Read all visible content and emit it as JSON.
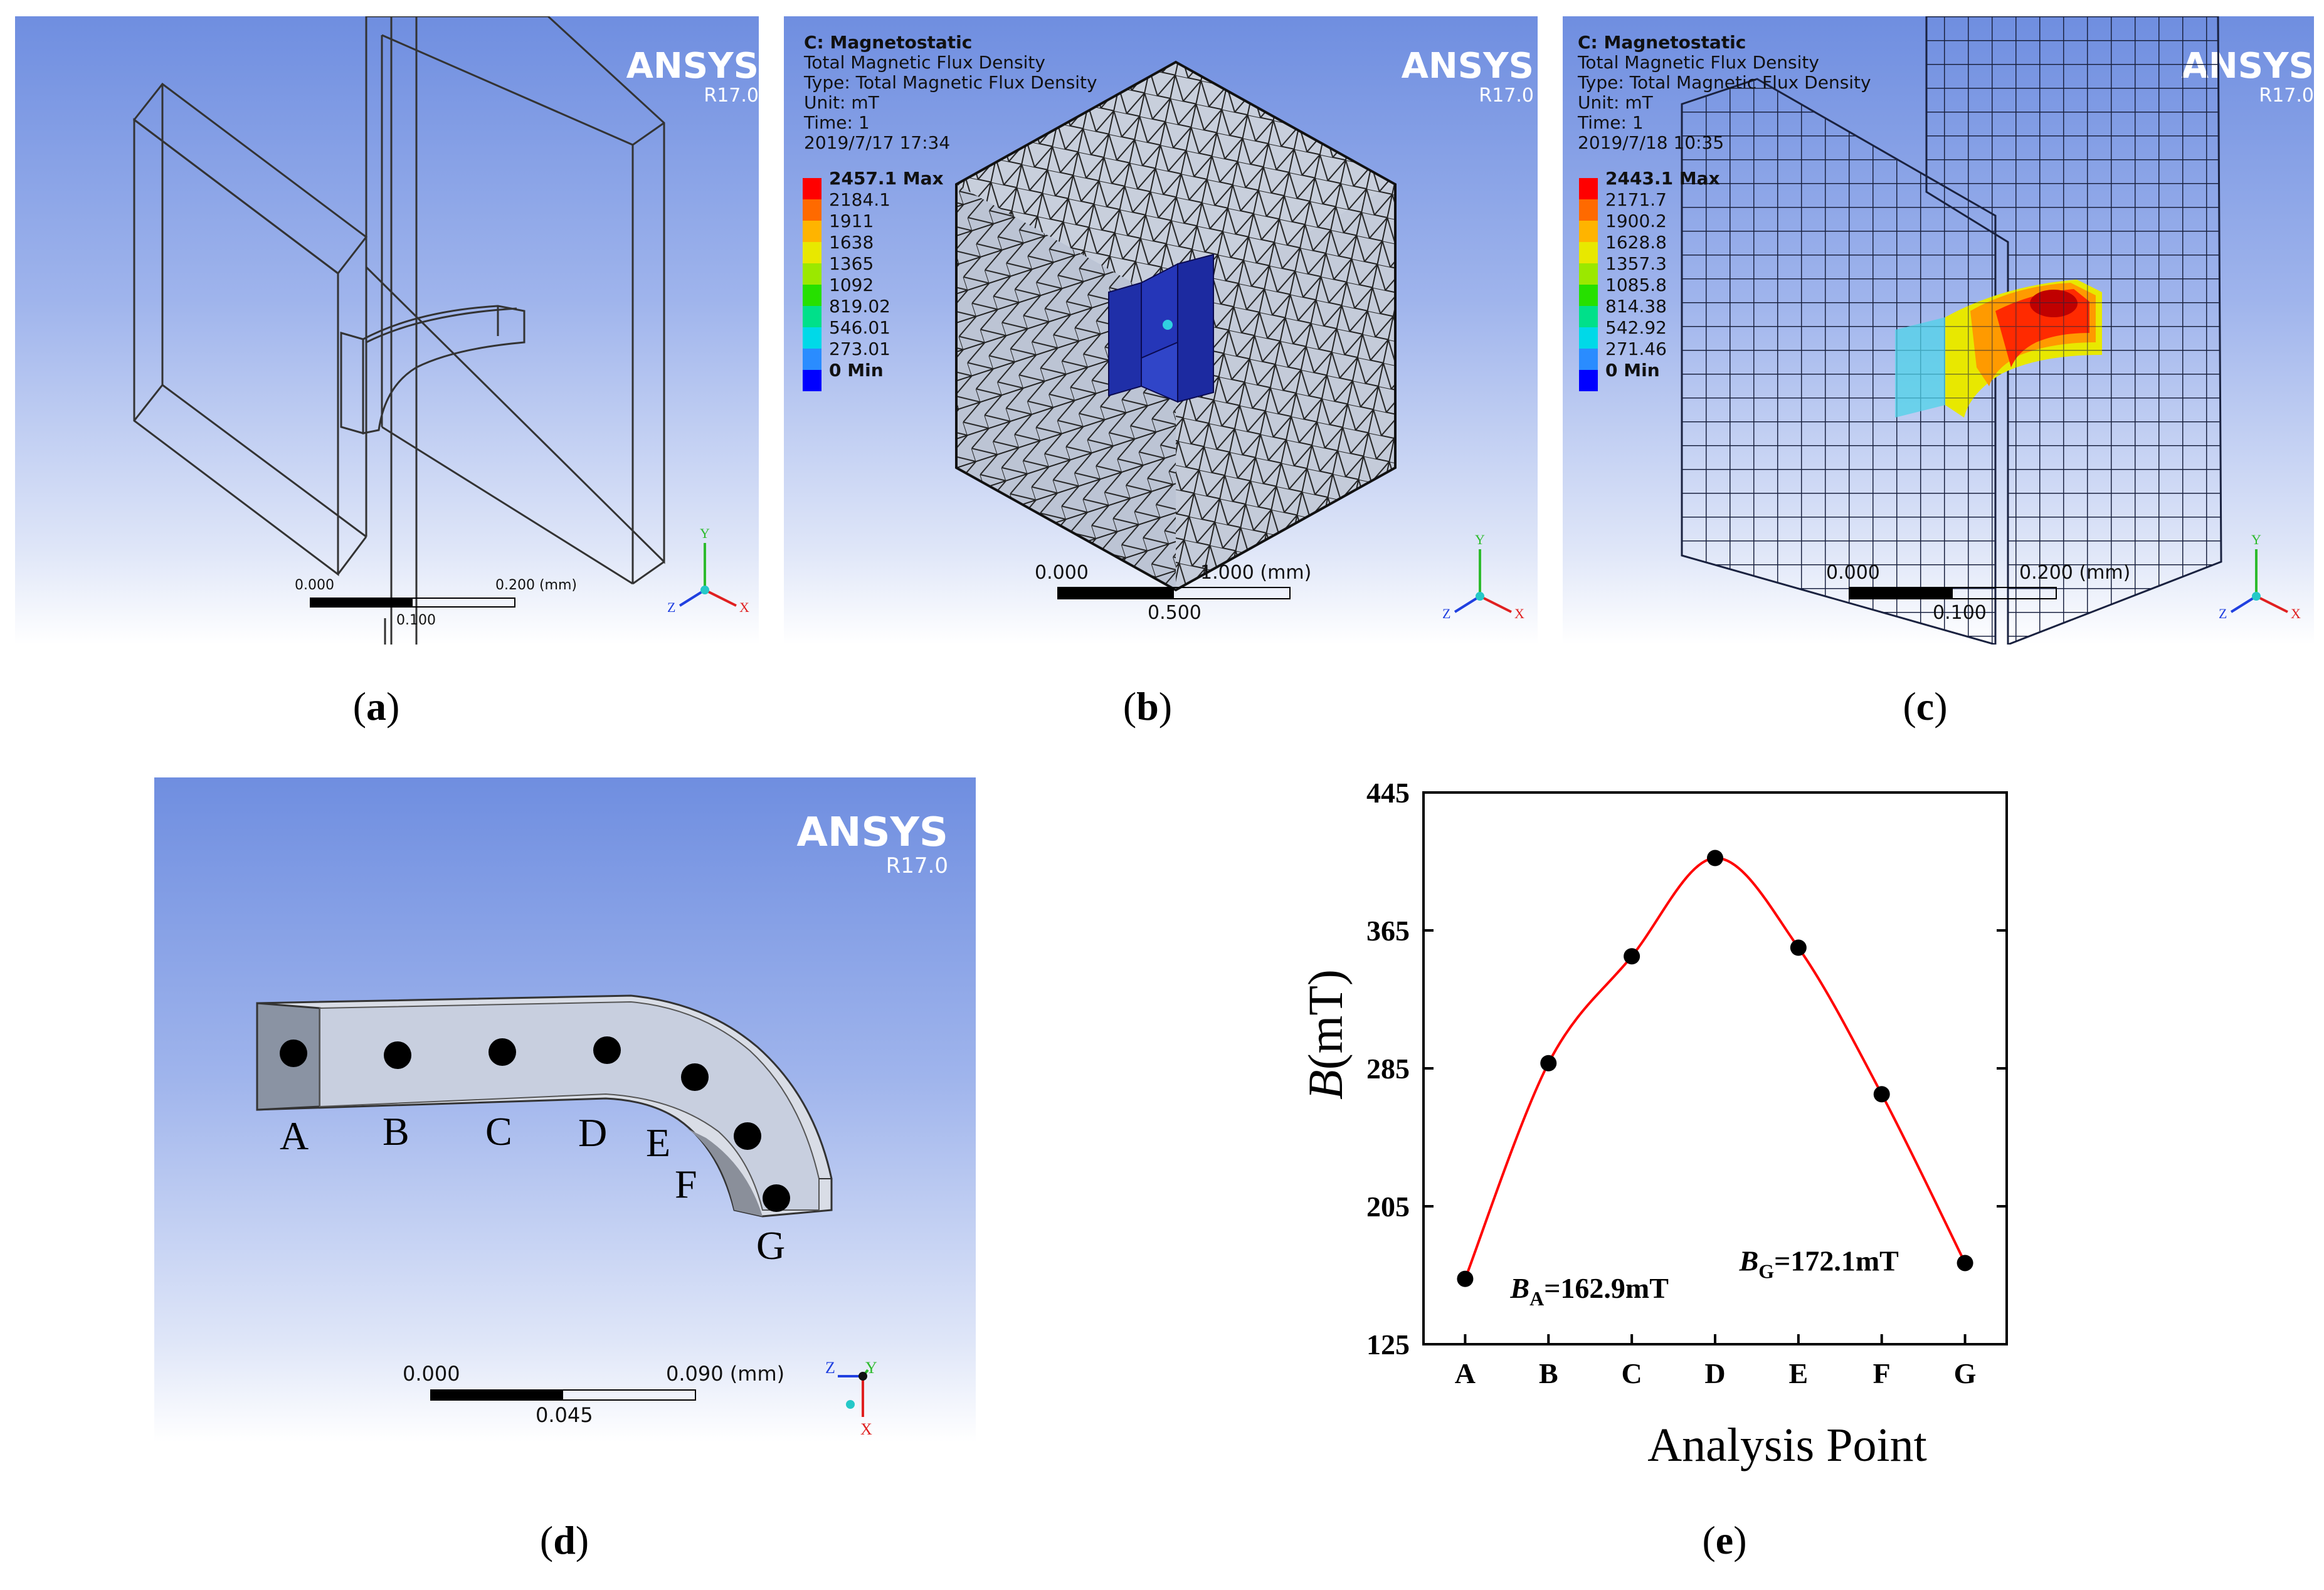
{
  "brand": {
    "name": "ANSYS",
    "version": "R17.0"
  },
  "panel_a": {
    "caption_letter": "a",
    "scale": {
      "left": "0.000",
      "mid": "0.100",
      "right": "0.200 (mm)"
    }
  },
  "panel_b": {
    "caption_letter": "b",
    "header": {
      "title": "C: Magnetostatic",
      "line1": "Total Magnetic Flux Density",
      "line2": "Type: Total Magnetic Flux Density",
      "line3": "Unit: mT",
      "line4": "Time: 1",
      "line5": "2019/7/17 17:34"
    },
    "legend": [
      "2457.1 Max",
      "2184.1",
      "1911",
      "1638",
      "1365",
      "1092",
      "819.02",
      "546.01",
      "273.01",
      "0 Min"
    ],
    "scale": {
      "left": "0.000",
      "mid": "0.500",
      "right": "1.000 (mm)"
    }
  },
  "panel_c": {
    "caption_letter": "c",
    "header": {
      "title": "C: Magnetostatic",
      "line1": "Total Magnetic Flux Density",
      "line2": "Type: Total Magnetic Flux Density",
      "line3": "Unit: mT",
      "line4": "Time: 1",
      "line5": "2019/7/18 10:35"
    },
    "legend": [
      "2443.1 Max",
      "2171.7",
      "1900.2",
      "1628.8",
      "1357.3",
      "1085.8",
      "814.38",
      "542.92",
      "271.46",
      "0 Min"
    ],
    "scale": {
      "left": "0.000",
      "mid": "0.100",
      "right": "0.200 (mm)"
    }
  },
  "panel_d": {
    "caption_letter": "d",
    "points": [
      "A",
      "B",
      "C",
      "D",
      "E",
      "F",
      "G"
    ],
    "scale": {
      "left": "0.000",
      "mid": "0.045",
      "right": "0.090 (mm)"
    }
  },
  "legend_colors": [
    "#ff0000",
    "#ff6a00",
    "#ffb400",
    "#e8e800",
    "#9be800",
    "#26e000",
    "#00e08a",
    "#00d9e8",
    "#2a8cff",
    "#0000ff"
  ],
  "chart_data": {
    "type": "line",
    "caption_letter": "e",
    "categories": [
      "A",
      "B",
      "C",
      "D",
      "E",
      "F",
      "G"
    ],
    "series": [
      {
        "name": "B",
        "values": [
          162.9,
          288,
          350,
          407,
          355,
          270,
          172.1
        ],
        "color": "#ff0000"
      }
    ],
    "xlabel": "Analysis Point",
    "ylabel_var": "B",
    "ylabel_unit": "(mT)",
    "ylim": [
      125,
      445
    ],
    "yticks": [
      125,
      205,
      285,
      365,
      445
    ],
    "annotations": [
      {
        "var": "B",
        "sub": "A",
        "text": "=162.9mT"
      },
      {
        "var": "B",
        "sub": "G",
        "text": "=172.1mT"
      }
    ]
  }
}
